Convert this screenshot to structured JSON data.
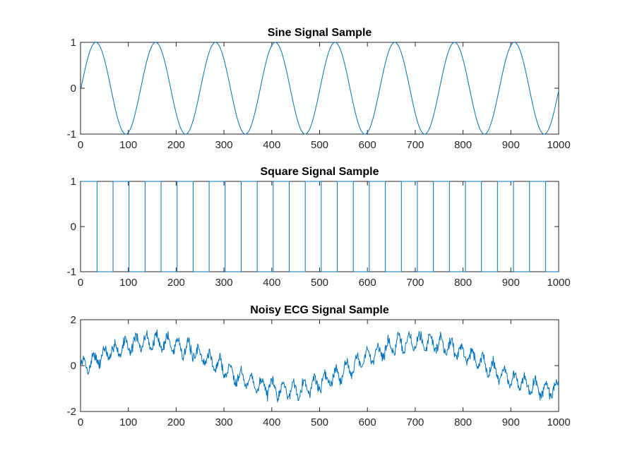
{
  "figure": {
    "background": "#ffffff",
    "axis_color": "#262626",
    "line_color": "#0072bd"
  },
  "chart_data": [
    {
      "type": "line",
      "title": "Sine Signal Sample",
      "xlabel": "",
      "ylabel": "",
      "xlim": [
        0,
        1000
      ],
      "ylim": [
        -1,
        1
      ],
      "xticks": [
        0,
        100,
        200,
        300,
        400,
        500,
        600,
        700,
        800,
        900,
        1000
      ],
      "yticks": [
        -1,
        0,
        1
      ],
      "grid": false,
      "series": [
        {
          "generator": "sine",
          "period": 125,
          "amplitude": 1,
          "x_range": [
            1,
            1000
          ]
        }
      ]
    },
    {
      "type": "line",
      "title": "Square Signal Sample",
      "xlabel": "",
      "ylabel": "",
      "xlim": [
        0,
        1000
      ],
      "ylim": [
        -1,
        1
      ],
      "xticks": [
        0,
        100,
        200,
        300,
        400,
        500,
        600,
        700,
        800,
        900,
        1000
      ],
      "yticks": [
        -1,
        0,
        1
      ],
      "grid": false,
      "series": [
        {
          "generator": "square",
          "period": 67,
          "amplitude": 1,
          "x_range": [
            1,
            1000
          ]
        }
      ]
    },
    {
      "type": "line",
      "title": "Noisy ECG Signal Sample",
      "xlabel": "",
      "ylabel": "",
      "xlim": [
        0,
        1000
      ],
      "ylim": [
        -2,
        2
      ],
      "xticks": [
        0,
        100,
        200,
        300,
        400,
        500,
        600,
        700,
        800,
        900,
        1000
      ],
      "yticks": [
        -2,
        0,
        2
      ],
      "grid": false,
      "series": [
        {
          "generator": "noisy-sine",
          "x_range": [
            1,
            1000
          ],
          "base_period": 560,
          "base_amplitude": 1.05,
          "base_phase": -0.1,
          "ripple_period": 22,
          "ripple_amplitude": 0.32,
          "noise_amplitude": 0.3
        }
      ]
    }
  ]
}
